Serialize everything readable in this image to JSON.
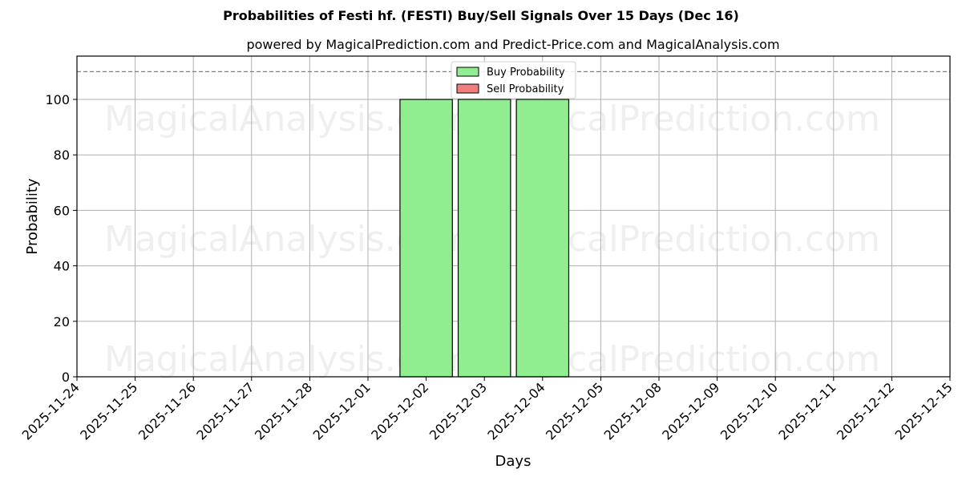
{
  "title": "Probabilities of Festi hf. (FESTI) Buy/Sell Signals Over 15 Days (Dec 16)",
  "subtitle": "powered by MagicalPrediction.com and Predict-Price.com and MagicalAnalysis.com",
  "watermarks": [
    "MagicalAnalysis.com",
    "MagicalPrediction.com"
  ],
  "colors": {
    "buy": "#90ee90",
    "sell": "#f08080",
    "grid": "#b0b0b0",
    "threshold": "#808080"
  },
  "chart_data": {
    "type": "bar",
    "title": "Probabilities of Festi hf. (FESTI) Buy/Sell Signals Over 15 Days (Dec 16)",
    "subtitle": "powered by MagicalPrediction.com and Predict-Price.com and MagicalAnalysis.com",
    "xlabel": "Days",
    "ylabel": "Probability",
    "ylim": [
      0,
      115
    ],
    "yticks": [
      0,
      20,
      40,
      60,
      80,
      100
    ],
    "grid": true,
    "legend_position": "upper center",
    "threshold_line": {
      "y": 110,
      "style": "dashed",
      "color": "#808080"
    },
    "categories": [
      "2025-11-24",
      "2025-11-25",
      "2025-11-26",
      "2025-11-27",
      "2025-11-28",
      "2025-12-01",
      "2025-12-02",
      "2025-12-03",
      "2025-12-04",
      "2025-12-05",
      "2025-12-08",
      "2025-12-09",
      "2025-12-10",
      "2025-12-11",
      "2025-12-12",
      "2025-12-15"
    ],
    "series": [
      {
        "name": "Buy Probability",
        "color": "#90ee90",
        "values": [
          0,
          0,
          0,
          0,
          0,
          0,
          100,
          100,
          100,
          0,
          0,
          0,
          0,
          0,
          0,
          0
        ]
      },
      {
        "name": "Sell Probability",
        "color": "#f08080",
        "values": [
          0,
          0,
          0,
          0,
          0,
          0,
          0,
          0,
          0,
          0,
          0,
          0,
          0,
          0,
          0,
          0
        ]
      }
    ]
  }
}
